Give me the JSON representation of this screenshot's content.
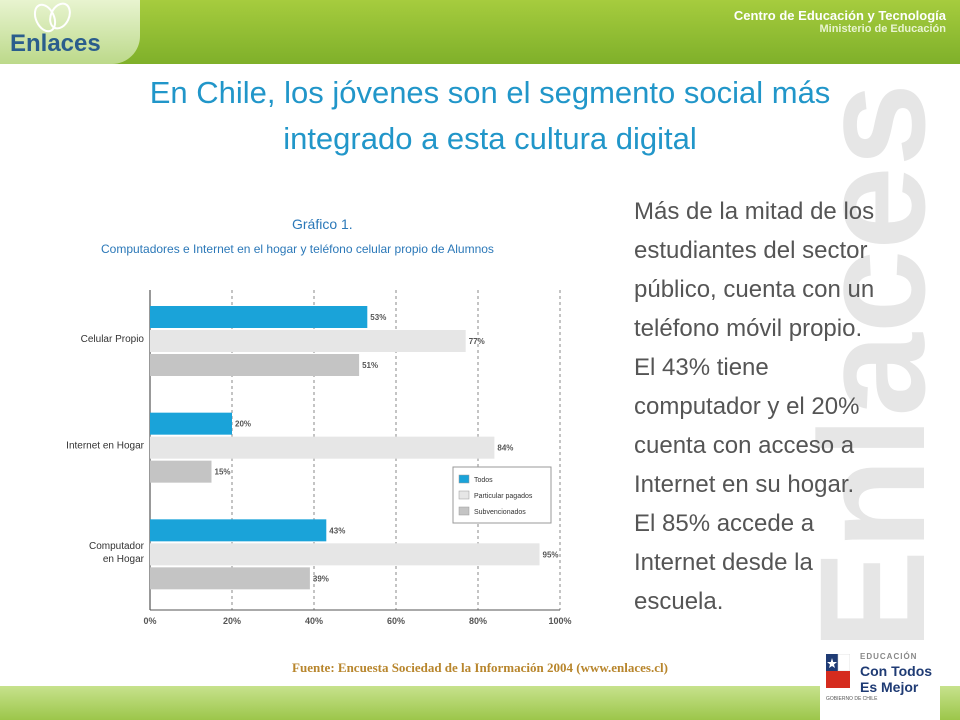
{
  "header": {
    "logo_text": "Enlaces",
    "org_line1": "Centro de Educación y Tecnología",
    "org_line2": "Ministerio de Educación",
    "watermark_text": "Enlaces"
  },
  "slide": {
    "title_line1": "En Chile, los jóvenes son el segmento social más",
    "title_line2": "integrado a esta cultura digital",
    "body_lines": [
      "Más de la mitad de los",
      "estudiantes del sector",
      "público, cuenta con un",
      "teléfono móvil propio.",
      "El 43% tiene",
      "computador y el 20%",
      "cuenta con acceso a",
      "Internet en su hogar.",
      "El 85% accede a",
      "Internet desde la",
      "escuela."
    ],
    "source": "Fuente: Encuesta Sociedad de la Información 2004 (www.enlaces.cl)"
  },
  "footer": {
    "gov_small": "EDUCACIÓN",
    "gov_line1": "Con Todos",
    "gov_line2": "Es Mejor",
    "gov_tiny": "GOBIERNO DE CHILE"
  },
  "chart_data": {
    "type": "bar",
    "orientation": "horizontal",
    "title": "Gráfico 1.",
    "subtitle": "Computadores e Internet en el hogar y teléfono celular propio de Alumnos",
    "categories": [
      "Celular Propio",
      "Internet en Hogar",
      "Computador en Hogar"
    ],
    "series": [
      {
        "name": "Todos",
        "color": "#1aa3d9",
        "values": [
          53,
          20,
          43
        ]
      },
      {
        "name": "Particular pagados",
        "color": "#e6e6e6",
        "values": [
          77,
          84,
          95
        ]
      },
      {
        "name": "Subvencionados",
        "color": "#c4c4c4",
        "values": [
          51,
          15,
          39
        ]
      }
    ],
    "xlim": [
      0,
      100
    ],
    "xticks": [
      "0%",
      "20%",
      "40%",
      "60%",
      "80%",
      "100%"
    ],
    "value_suffix": "%",
    "grid": true,
    "legend_position": "bottom-right"
  }
}
